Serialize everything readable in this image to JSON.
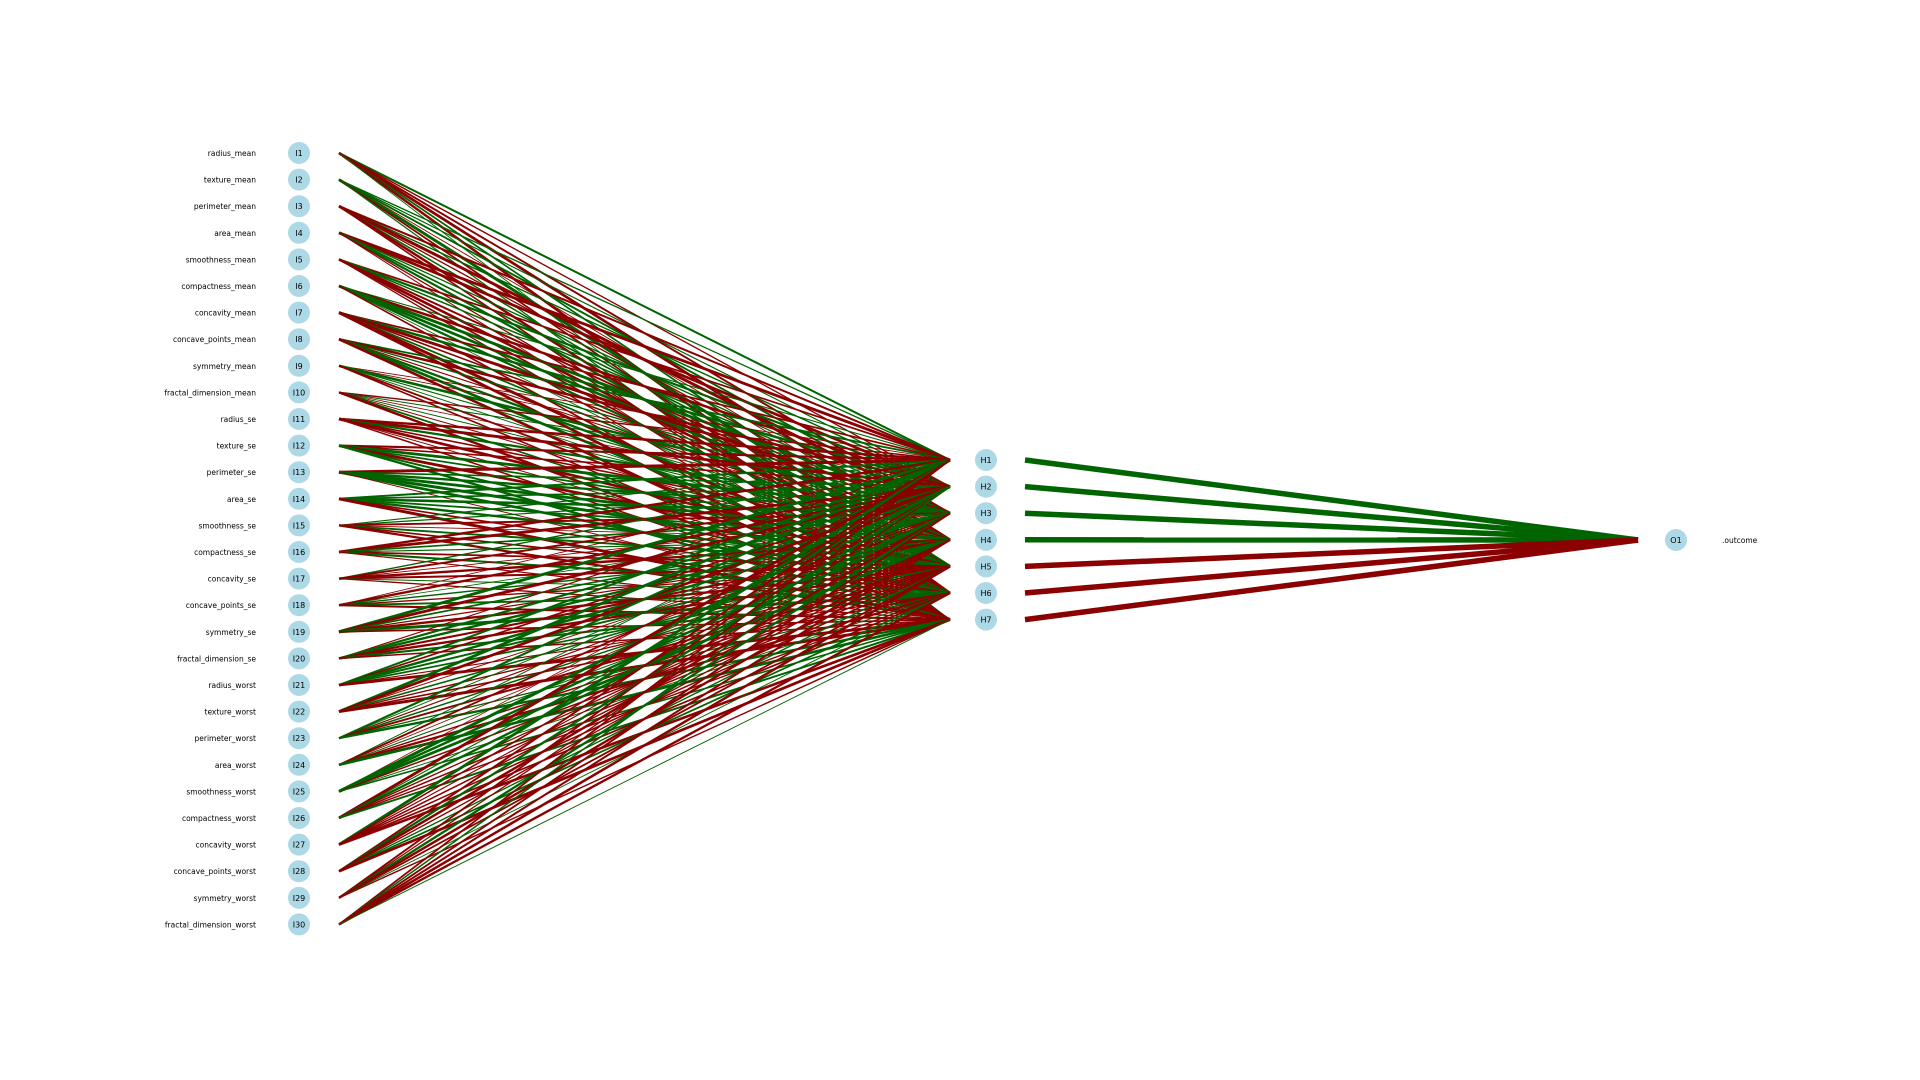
{
  "colors": {
    "positive": "#006400",
    "negative": "#8b0000",
    "node_fill": "#add8e6"
  },
  "network": {
    "input_nodes": [
      "I1",
      "I2",
      "I3",
      "I4",
      "I5",
      "I6",
      "I7",
      "I8",
      "I9",
      "I10",
      "I11",
      "I12",
      "I13",
      "I14",
      "I15",
      "I16",
      "I17",
      "I18",
      "I19",
      "I20",
      "I21",
      "I22",
      "I23",
      "I24",
      "I25",
      "I26",
      "I27",
      "I28",
      "I29",
      "I30"
    ],
    "input_labels": [
      "radius_mean",
      "texture_mean",
      "perimeter_mean",
      "area_mean",
      "smoothness_mean",
      "compactness_mean",
      "concavity_mean",
      "concave_points_mean",
      "symmetry_mean",
      "fractal_dimension_mean",
      "radius_se",
      "texture_se",
      "perimeter_se",
      "area_se",
      "smoothness_se",
      "compactness_se",
      "concavity_se",
      "concave_points_se",
      "symmetry_se",
      "fractal_dimension_se",
      "radius_worst",
      "texture_worst",
      "perimeter_worst",
      "area_worst",
      "smoothness_worst",
      "compactness_worst",
      "concavity_worst",
      "concave_points_worst",
      "symmetry_worst",
      "fractal_dimension_worst"
    ],
    "hidden_nodes": [
      "H1",
      "H2",
      "H3",
      "H4",
      "H5",
      "H6",
      "H7"
    ],
    "output_nodes": [
      "O1"
    ],
    "output_labels": [
      ".outcome"
    ],
    "hidden_output_signs": [
      "positive",
      "positive",
      "positive",
      "positive",
      "negative",
      "negative",
      "negative"
    ]
  }
}
